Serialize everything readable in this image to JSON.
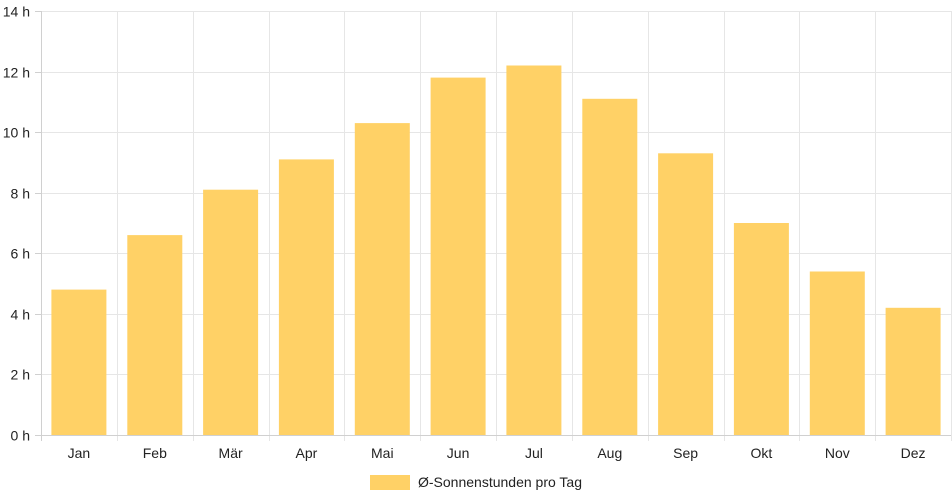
{
  "chart_data": {
    "type": "bar",
    "categories": [
      "Jan",
      "Feb",
      "Mär",
      "Apr",
      "Mai",
      "Jun",
      "Jul",
      "Aug",
      "Sep",
      "Okt",
      "Nov",
      "Dez"
    ],
    "series": [
      {
        "name": "Ø-Sonnenstunden pro Tag",
        "values": [
          4.8,
          6.6,
          8.1,
          9.1,
          10.3,
          11.8,
          12.2,
          11.1,
          9.3,
          7.0,
          5.4,
          4.2
        ],
        "color": "#ffd166"
      }
    ],
    "title": "",
    "xlabel": "",
    "ylabel": "",
    "ylim": [
      0,
      14
    ],
    "yticks": [
      0,
      2,
      4,
      6,
      8,
      10,
      12,
      14
    ],
    "ytick_labels": [
      "0 h",
      "2 h",
      "4 h",
      "6 h",
      "8 h",
      "10 h",
      "12 h",
      "14 h"
    ],
    "grid": true,
    "legend_position": "bottom-center"
  }
}
